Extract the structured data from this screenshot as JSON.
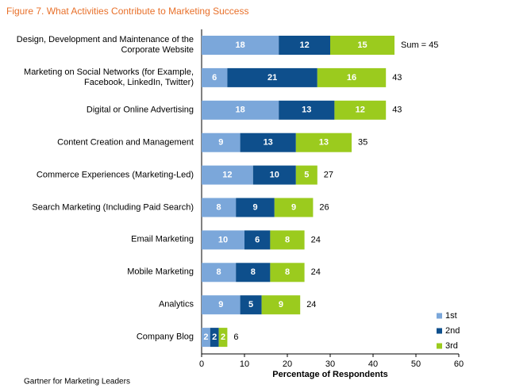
{
  "chart_data": {
    "type": "stacked-bar-horizontal",
    "title": "Figure 7. What Activities Contribute to Marketing Success",
    "footer": "Gartner for Marketing Leaders",
    "xlabel": "Percentage of Respondents",
    "categories": [
      "Design, Development and Maintenance of the Corporate Website",
      "Marketing on Social Networks (for Example, Facebook, LinkedIn, Twitter)",
      "Digital or Online Advertising",
      "Content Creation and Management",
      "Commerce Experiences (Marketing-Led)",
      "Search Marketing (Including Paid Search)",
      "Email Marketing",
      "Mobile Marketing",
      "Analytics",
      "Company Blog"
    ],
    "series": [
      {
        "name": "1st",
        "color": "#7ba7da",
        "values": [
          18,
          6,
          18,
          9,
          12,
          8,
          10,
          8,
          9,
          2
        ]
      },
      {
        "name": "2nd",
        "color": "#0e4f8c",
        "values": [
          12,
          21,
          13,
          13,
          10,
          9,
          6,
          8,
          5,
          2
        ]
      },
      {
        "name": "3rd",
        "color": "#9bcb1e",
        "values": [
          15,
          16,
          12,
          13,
          5,
          9,
          8,
          8,
          9,
          2
        ]
      }
    ],
    "totals": {
      "values": [
        45,
        43,
        43,
        35,
        27,
        26,
        24,
        24,
        24,
        6
      ],
      "value_labels": [
        "Sum = 45",
        "43",
        "43",
        "35",
        "27",
        "26",
        "24",
        "24",
        "24",
        "6"
      ]
    },
    "xlim": [
      0,
      60
    ],
    "xticks": [
      0,
      10,
      20,
      30,
      40,
      50,
      60
    ],
    "legend": "bottom-right"
  }
}
